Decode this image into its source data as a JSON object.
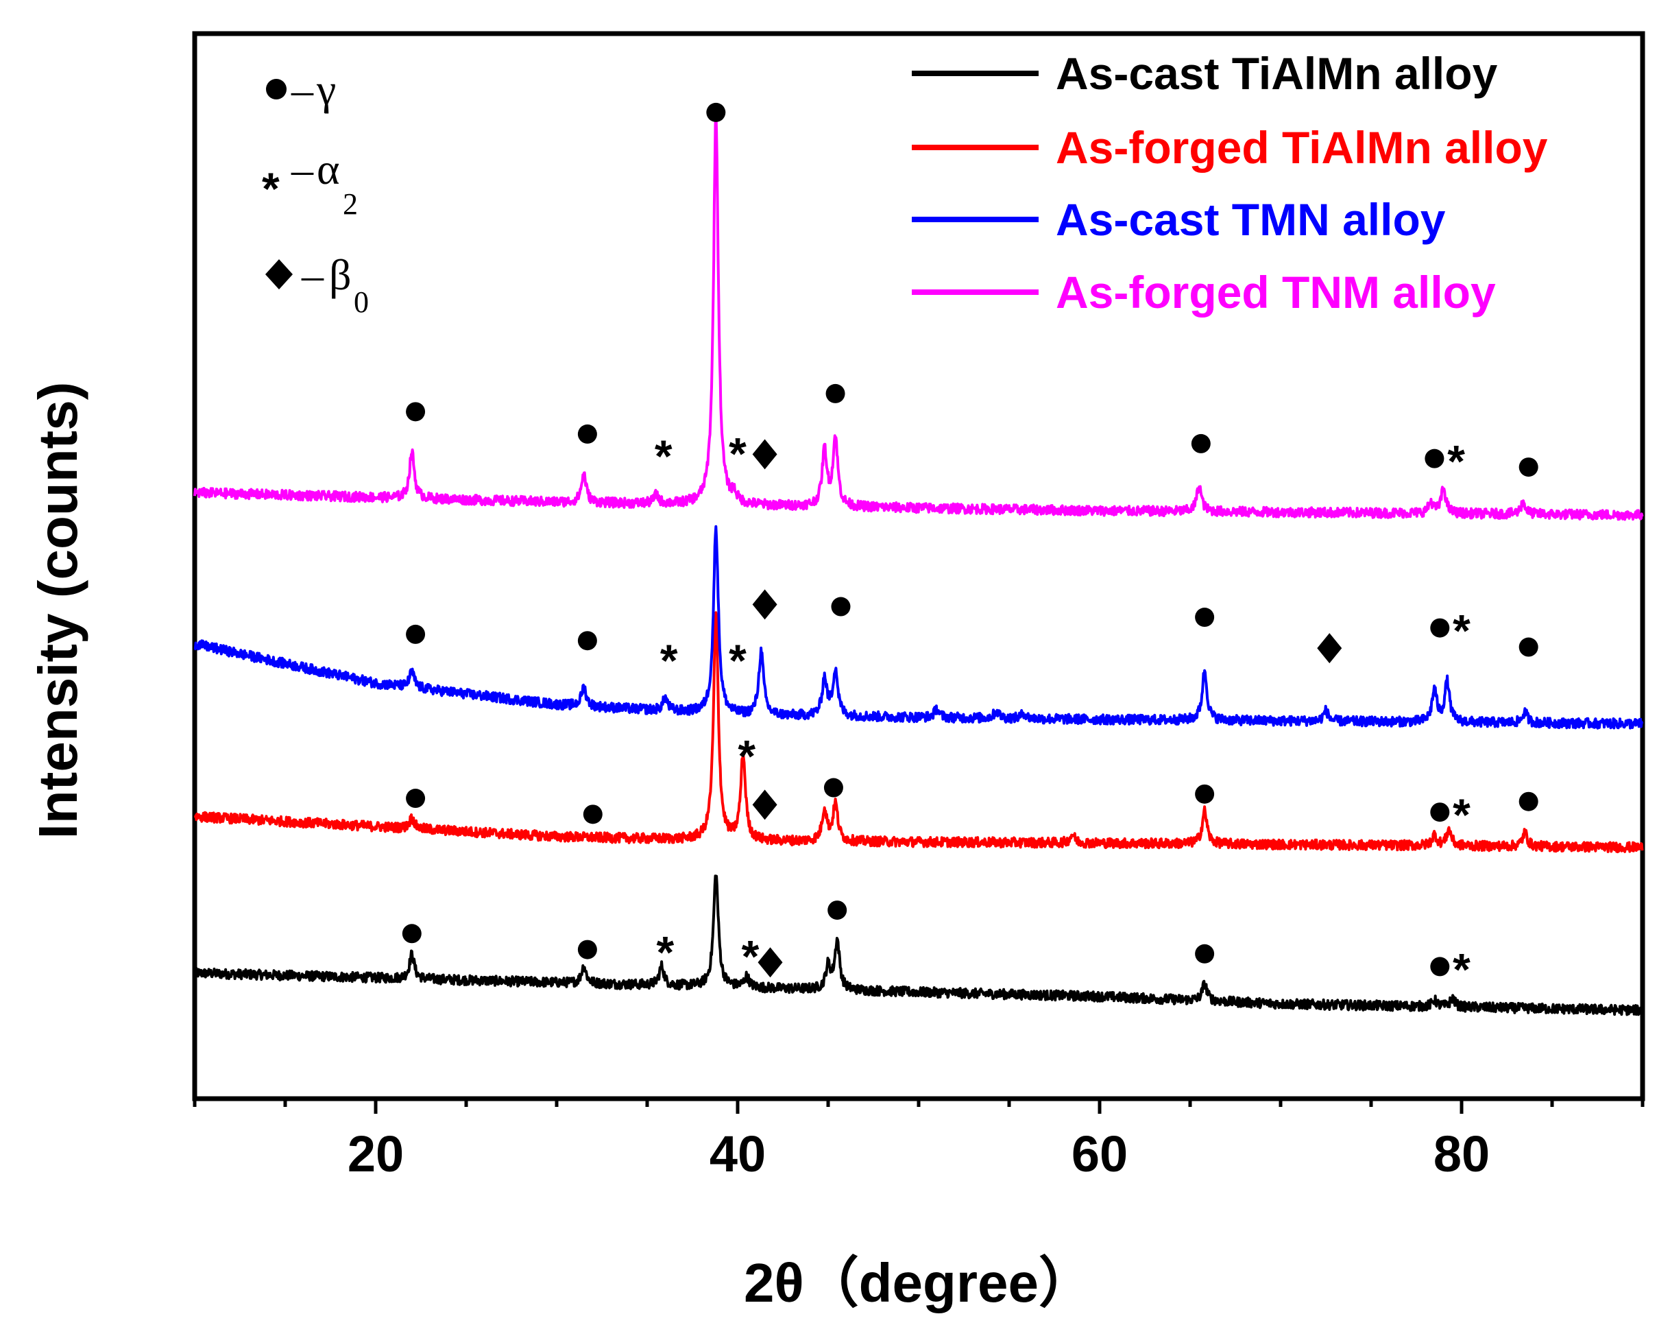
{
  "chart_data": {
    "type": "line",
    "title": "",
    "xlabel": "2θ（degree）",
    "ylabel": "Intensity (counts)",
    "xlim": [
      10,
      90
    ],
    "ylim": [
      0,
      100
    ],
    "xticks": [
      20,
      40,
      60,
      80
    ],
    "xtick_labels": [
      "20",
      "40",
      "60",
      "80"
    ],
    "grid": false,
    "legend_position": "top-right",
    "phase_key": [
      {
        "symbol": "circle",
        "text": "γ",
        "sub": ""
      },
      {
        "symbol": "star",
        "text": "α",
        "sub": "2"
      },
      {
        "symbol": "diamond",
        "text": "β",
        "sub": "0"
      }
    ],
    "series": [
      {
        "name": "As-cast TiAlMn alloy",
        "color": "#000000",
        "baseline": [
          [
            10,
            11.8
          ],
          [
            50,
            10.0
          ],
          [
            60,
            9.6
          ],
          [
            70,
            8.9
          ],
          [
            90,
            8.3
          ]
        ],
        "peaks": [
          [
            22.0,
            2.3
          ],
          [
            31.5,
            1.6
          ],
          [
            35.8,
            1.8
          ],
          [
            38.8,
            10.6
          ],
          [
            40.5,
            1.0
          ],
          [
            45.0,
            2.2
          ],
          [
            45.5,
            4.6
          ],
          [
            65.8,
            1.6
          ],
          [
            78.5,
            0.6
          ],
          [
            79.5,
            0.8
          ]
        ],
        "markers": [
          {
            "x": 22.0,
            "y": 15.5,
            "symbol": "circle"
          },
          {
            "x": 31.7,
            "y": 14.0,
            "symbol": "circle"
          },
          {
            "x": 36.0,
            "y": 14.2,
            "symbol": "star"
          },
          {
            "x": 40.7,
            "y": 13.8,
            "symbol": "star"
          },
          {
            "x": 41.8,
            "y": 12.8,
            "symbol": "diamond"
          },
          {
            "x": 45.5,
            "y": 17.7,
            "symbol": "circle"
          },
          {
            "x": 65.8,
            "y": 13.6,
            "symbol": "circle"
          },
          {
            "x": 78.8,
            "y": 12.4,
            "symbol": "circle"
          },
          {
            "x": 80.0,
            "y": 12.6,
            "symbol": "star"
          }
        ]
      },
      {
        "name": "As-forged TiAlMn alloy",
        "color": "#ff0000",
        "baseline": [
          [
            10,
            26.5
          ],
          [
            30,
            24.6
          ],
          [
            40,
            24.2
          ],
          [
            60,
            24.0
          ],
          [
            90,
            23.6
          ]
        ],
        "peaks": [
          [
            22.0,
            1.0
          ],
          [
            38.8,
            21.2
          ],
          [
            40.3,
            8.0
          ],
          [
            44.8,
            3.0
          ],
          [
            45.4,
            3.5
          ],
          [
            58.5,
            0.8
          ],
          [
            65.8,
            3.1
          ],
          [
            78.5,
            1.0
          ],
          [
            79.3,
            1.5
          ],
          [
            83.5,
            1.3
          ]
        ],
        "markers": [
          {
            "x": 22.2,
            "y": 28.2,
            "symbol": "circle"
          },
          {
            "x": 32.0,
            "y": 26.7,
            "symbol": "circle"
          },
          {
            "x": 40.5,
            "y": 32.6,
            "symbol": "star"
          },
          {
            "x": 41.5,
            "y": 27.6,
            "symbol": "diamond"
          },
          {
            "x": 45.3,
            "y": 29.2,
            "symbol": "circle"
          },
          {
            "x": 65.8,
            "y": 28.6,
            "symbol": "circle"
          },
          {
            "x": 78.8,
            "y": 26.9,
            "symbol": "circle"
          },
          {
            "x": 80.0,
            "y": 27.1,
            "symbol": "star"
          },
          {
            "x": 83.7,
            "y": 27.9,
            "symbol": "circle"
          }
        ]
      },
      {
        "name": "As-cast TMN alloy",
        "color": "#0000ff",
        "baseline": [
          [
            10,
            42.7
          ],
          [
            20,
            39.0
          ],
          [
            30,
            37.0
          ],
          [
            40,
            36.0
          ],
          [
            60,
            35.6
          ],
          [
            90,
            35.2
          ]
        ],
        "peaks": [
          [
            22.0,
            1.5
          ],
          [
            31.5,
            1.8
          ],
          [
            36.0,
            1.2
          ],
          [
            38.8,
            17.5
          ],
          [
            41.3,
            6.0
          ],
          [
            44.8,
            3.5
          ],
          [
            45.4,
            4.4
          ],
          [
            51.0,
            0.8
          ],
          [
            54.3,
            0.7
          ],
          [
            55.8,
            0.5
          ],
          [
            65.8,
            4.6
          ],
          [
            72.5,
            1.0
          ],
          [
            78.5,
            3.0
          ],
          [
            79.2,
            3.8
          ],
          [
            83.5,
            1.0
          ]
        ],
        "markers": [
          {
            "x": 22.2,
            "y": 43.6,
            "symbol": "circle"
          },
          {
            "x": 31.7,
            "y": 43.0,
            "symbol": "circle"
          },
          {
            "x": 36.2,
            "y": 41.6,
            "symbol": "star"
          },
          {
            "x": 40.0,
            "y": 41.6,
            "symbol": "star"
          },
          {
            "x": 41.5,
            "y": 46.4,
            "symbol": "diamond"
          },
          {
            "x": 45.7,
            "y": 46.2,
            "symbol": "circle"
          },
          {
            "x": 65.8,
            "y": 45.2,
            "symbol": "circle"
          },
          {
            "x": 72.7,
            "y": 42.3,
            "symbol": "diamond"
          },
          {
            "x": 78.8,
            "y": 44.2,
            "symbol": "circle"
          },
          {
            "x": 80.0,
            "y": 44.4,
            "symbol": "star"
          },
          {
            "x": 83.7,
            "y": 42.4,
            "symbol": "circle"
          }
        ]
      },
      {
        "name": "As-forged TNM alloy",
        "color": "#ff00ff",
        "baseline": [
          [
            10,
            56.9
          ],
          [
            30,
            56.0
          ],
          [
            40,
            55.7
          ],
          [
            60,
            55.2
          ],
          [
            90,
            54.8
          ]
        ],
        "peaks": [
          [
            22.0,
            4.4
          ],
          [
            31.5,
            2.7
          ],
          [
            35.5,
            0.8
          ],
          [
            38.8,
            36.7
          ],
          [
            39.8,
            0.8
          ],
          [
            44.8,
            5.2
          ],
          [
            45.4,
            6.4
          ],
          [
            65.5,
            2.4
          ],
          [
            78.3,
            1.0
          ],
          [
            79.0,
            2.3
          ],
          [
            83.4,
            1.1
          ]
        ],
        "markers": [
          {
            "x": 22.2,
            "y": 64.5,
            "symbol": "circle"
          },
          {
            "x": 31.7,
            "y": 62.4,
            "symbol": "circle"
          },
          {
            "x": 35.9,
            "y": 60.8,
            "symbol": "star"
          },
          {
            "x": 40.0,
            "y": 61.0,
            "symbol": "star"
          },
          {
            "x": 41.5,
            "y": 60.5,
            "symbol": "diamond"
          },
          {
            "x": 45.4,
            "y": 66.2,
            "symbol": "circle"
          },
          {
            "x": 65.6,
            "y": 61.5,
            "symbol": "circle"
          },
          {
            "x": 78.5,
            "y": 60.1,
            "symbol": "circle"
          },
          {
            "x": 79.7,
            "y": 60.3,
            "symbol": "star"
          },
          {
            "x": 83.7,
            "y": 59.3,
            "symbol": "circle"
          }
        ]
      }
    ],
    "top_peak_marker": {
      "x": 38.8,
      "y": 92.6,
      "symbol": "circle"
    }
  }
}
